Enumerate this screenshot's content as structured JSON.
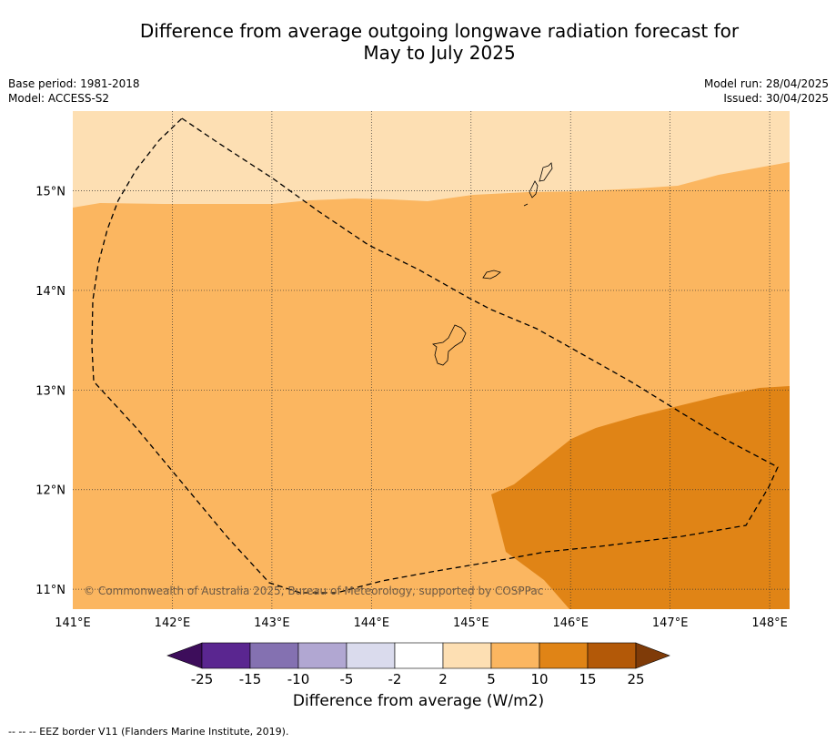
{
  "title_line1": "Difference from average outgoing longwave radiation forecast for",
  "title_line2": "May to July 2025",
  "base_period": "Base period: 1981-2018",
  "model": "Model: ACCESS-S2",
  "model_run": "Model run: 28/04/2025",
  "issued": "Issued: 30/04/2025",
  "copyright": "© Commonwealth of Australia 2025, Bureau of Meteorology, supported by COSPPac",
  "eez_note": "--  --  -- EEZ border V11 (Flanders Marine Institute, 2019).",
  "colors": {
    "land_outline": "#000000",
    "grid": "#333333"
  },
  "map": {
    "lon_labels": [
      "141°E",
      "142°E",
      "143°E",
      "144°E",
      "145°E",
      "146°E",
      "147°E",
      "148°E"
    ],
    "lat_labels": [
      "15°N",
      "14°N",
      "13°N",
      "12°N",
      "11°N"
    ],
    "lon_range": [
      141.0,
      148.2
    ],
    "lat_range": [
      10.8,
      15.8
    ],
    "regions": [
      {
        "category": "2 to 5",
        "color": "#fddfb3"
      },
      {
        "category": "5 to 10",
        "color": "#fbb660"
      },
      {
        "category": "10 to 15",
        "color": "#e08416"
      }
    ]
  },
  "colorbar": {
    "title": "Difference from average (W/m2)",
    "tick_labels": [
      "-25",
      "-15",
      "-10",
      "-5",
      "-2",
      "2",
      "5",
      "10",
      "15",
      "25"
    ],
    "segment_colors": [
      "#3d0d5b",
      "#5a2690",
      "#8471b1",
      "#b1a7d2",
      "#dadbed",
      "#ffffff",
      "#fddfb3",
      "#fbb660",
      "#e08416",
      "#b35908",
      "#7f3b08"
    ]
  }
}
